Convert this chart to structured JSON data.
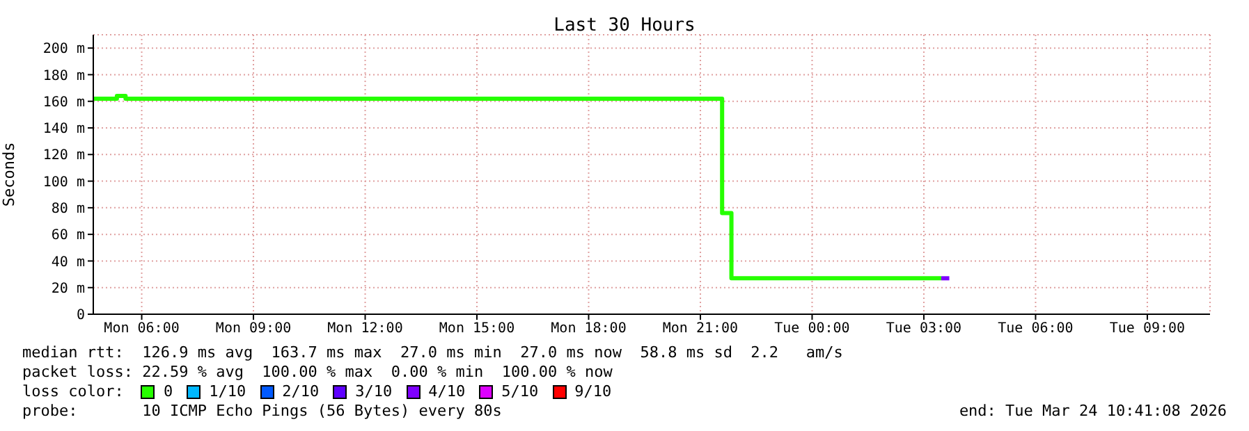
{
  "chart_data": {
    "type": "step",
    "title": "Last 30 Hours",
    "ylabel": "Seconds",
    "legend_title": "loss color:",
    "legend": "bottom",
    "grid": true,
    "line_style": "solid",
    "marker": "none",
    "xlim": [
      "2026-03-23T04:42",
      "2026-03-24T10:41"
    ],
    "xticks": [
      {
        "value": "2026-03-23T06:00",
        "label": "Mon 06:00"
      },
      {
        "value": "2026-03-23T09:00",
        "label": "Mon 09:00"
      },
      {
        "value": "2026-03-23T12:00",
        "label": "Mon 12:00"
      },
      {
        "value": "2026-03-23T15:00",
        "label": "Mon 15:00"
      },
      {
        "value": "2026-03-23T18:00",
        "label": "Mon 18:00"
      },
      {
        "value": "2026-03-23T21:00",
        "label": "Mon 21:00"
      },
      {
        "value": "2026-03-24T00:00",
        "label": "Tue 00:00"
      },
      {
        "value": "2026-03-24T03:00",
        "label": "Tue 03:00"
      },
      {
        "value": "2026-03-24T06:00",
        "label": "Tue 06:00"
      },
      {
        "value": "2026-03-24T09:00",
        "label": "Tue 09:00"
      }
    ],
    "ylim": [
      0,
      210
    ],
    "yticks": [
      0,
      {
        "value": 20,
        "label": "20 m"
      },
      {
        "value": 40,
        "label": "40 m"
      },
      {
        "value": 60,
        "label": "60 m"
      },
      {
        "value": 80,
        "label": "80 m"
      },
      {
        "value": 100,
        "label": "100 m"
      },
      {
        "value": 120,
        "label": "120 m"
      },
      {
        "value": 140,
        "label": "140 m"
      },
      {
        "value": 160,
        "label": "160 m"
      },
      {
        "value": 180,
        "label": "180 m"
      },
      {
        "value": 200,
        "label": "200 m"
      }
    ],
    "series": [
      {
        "name": "0",
        "color": "#26ff00",
        "x": [
          "2026-03-23T04:42",
          "2026-03-23T05:20",
          "2026-03-23T05:34",
          "2026-03-23T21:35",
          "2026-03-23T21:50",
          "2026-03-24T03:28"
        ],
        "values": [
          162,
          164,
          162,
          76,
          27,
          27
        ]
      },
      {
        "name": "1/10",
        "color": "#00b8ff"
      },
      {
        "name": "2/10",
        "color": "#0059ff"
      },
      {
        "name": "3/10",
        "color": "#5e00ff"
      },
      {
        "name": "4/10",
        "color": "#7e00ff",
        "x": [
          "2026-03-24T03:28",
          "2026-03-24T03:41"
        ],
        "values": [
          27,
          27
        ]
      },
      {
        "name": "5/10",
        "color": "#dd00ff"
      },
      {
        "name": "9/10",
        "color": "#ff0000"
      }
    ],
    "annotations": [
      "median rtt:  126.9 ms avg  163.7 ms max  27.0 ms min  27.0 ms now  58.8 ms sd  2.2   am/s",
      "packet loss: 22.59 % avg  100.00 % max  0.00 % min  100.00 % now",
      "probe:       10 ICMP Echo Pings (56 Bytes) every 80s",
      "end: Tue Mar 24 10:41:08 2026"
    ]
  }
}
